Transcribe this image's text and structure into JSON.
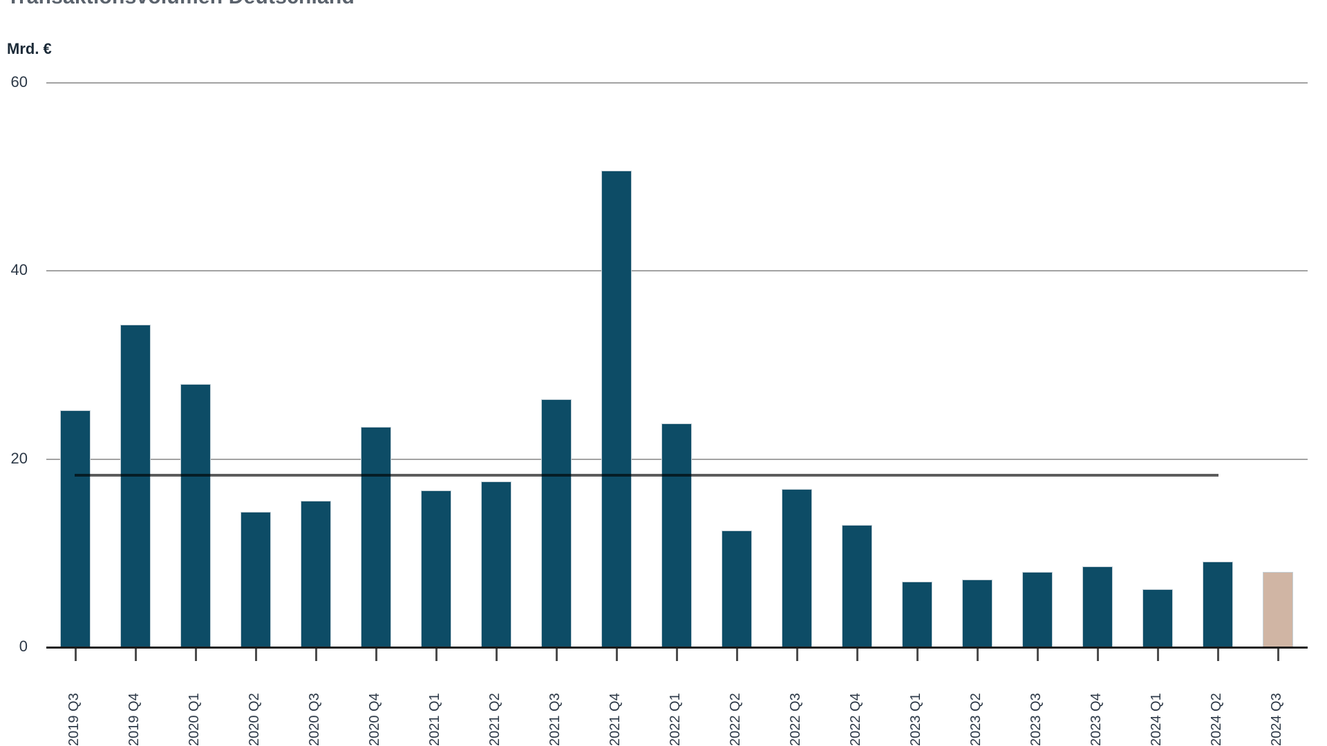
{
  "header": {
    "title": "Transaktionsvolumen Deutschland"
  },
  "chart_data": {
    "type": "bar",
    "title": "Transaktionsvolumen Deutschland",
    "ylabel": "Mrd. €",
    "xlabel": "",
    "unit_label": "Mrd. €",
    "categories": [
      "2019 Q3",
      "2019 Q4",
      "2020 Q1",
      "2020 Q2",
      "2020 Q3",
      "2020 Q4",
      "2021 Q1",
      "2021 Q2",
      "2021 Q3",
      "2021 Q4",
      "2022 Q1",
      "2022 Q2",
      "2022 Q3",
      "2022 Q4",
      "2023 Q1",
      "2023 Q2",
      "2023 Q3",
      "2023 Q4",
      "2024 Q1",
      "2024 Q2",
      "2024 Q3"
    ],
    "values": [
      25.2,
      34.3,
      28.0,
      14.4,
      15.6,
      23.4,
      16.7,
      17.6,
      26.4,
      50.7,
      23.8,
      12.4,
      16.8,
      13.0,
      7.0,
      7.2,
      8.0,
      8.6,
      6.2,
      9.1,
      8.0
    ],
    "highlight_category": "2024 Q3",
    "highlight_index": 20,
    "average_line": {
      "value": 18.3,
      "from_category": "2019 Q3",
      "to_category": "2024 Q2"
    },
    "yticks": [
      0,
      20,
      40,
      60
    ],
    "ylim": [
      0,
      60
    ],
    "grid": true,
    "legend": "none",
    "colors": {
      "bar": "#0d4c66",
      "highlight_bar": "#d0b5a4",
      "average_line": "#5c5c5c",
      "gridline": "#a2a2a2",
      "axis": "#1c1c1c",
      "tick_text": "#2d3947"
    }
  }
}
